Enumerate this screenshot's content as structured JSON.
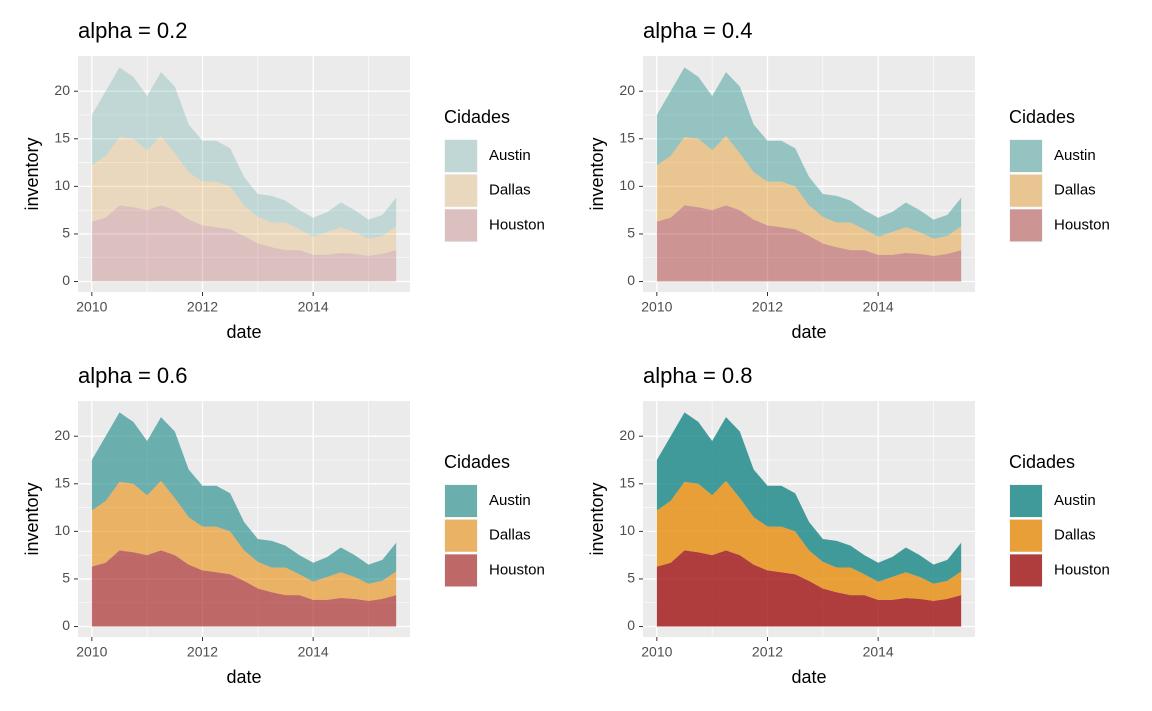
{
  "chart_data": [
    {
      "type": "area",
      "stacked": true,
      "title": "alpha = 0.2",
      "alpha": 0.2,
      "xlabel": "date",
      "ylabel": "inventory",
      "legend_title": "Cidades",
      "x": [
        2010,
        2010.25,
        2010.5,
        2010.75,
        2011,
        2011.25,
        2011.5,
        2011.75,
        2012,
        2012.25,
        2012.5,
        2012.75,
        2013,
        2013.25,
        2013.5,
        2013.75,
        2014,
        2014.25,
        2014.5,
        2014.75,
        2015,
        2015.25,
        2015.5
      ],
      "series": [
        {
          "name": "Austin",
          "color": "#148684",
          "values": [
            5.3,
            6.8,
            7.3,
            6.5,
            5.7,
            6.7,
            7.0,
            5.0,
            4.3,
            4.3,
            4.0,
            3.0,
            2.4,
            2.8,
            2.3,
            2.0,
            2.0,
            2.1,
            2.6,
            2.3,
            2.0,
            2.2,
            3.0
          ]
        },
        {
          "name": "Dallas",
          "color": "#E78C0B",
          "values": [
            5.9,
            6.5,
            7.2,
            7.2,
            6.3,
            7.3,
            6.0,
            5.0,
            4.6,
            4.8,
            4.5,
            3.2,
            2.8,
            2.6,
            2.9,
            2.2,
            1.9,
            2.4,
            2.7,
            2.3,
            1.8,
            1.9,
            2.5
          ]
        },
        {
          "name": "Houston",
          "color": "#A11111",
          "values": [
            6.3,
            6.7,
            8.0,
            7.8,
            7.5,
            8.0,
            7.5,
            6.5,
            5.9,
            5.7,
            5.5,
            4.8,
            4.0,
            3.6,
            3.3,
            3.3,
            2.8,
            2.8,
            3.0,
            2.9,
            2.7,
            2.9,
            3.3
          ]
        }
      ],
      "xlim": [
        2009.75,
        2015.75
      ],
      "xticks": [
        2010,
        2012,
        2014
      ],
      "ylim": [
        -1.1,
        23.7
      ],
      "yticks": [
        0,
        5,
        10,
        15,
        20
      ],
      "grid": true
    },
    {
      "type": "area",
      "stacked": true,
      "title": "alpha = 0.4",
      "alpha": 0.4,
      "xlabel": "date",
      "ylabel": "inventory",
      "legend_title": "Cidades",
      "x": [
        2010,
        2010.25,
        2010.5,
        2010.75,
        2011,
        2011.25,
        2011.5,
        2011.75,
        2012,
        2012.25,
        2012.5,
        2012.75,
        2013,
        2013.25,
        2013.5,
        2013.75,
        2014,
        2014.25,
        2014.5,
        2014.75,
        2015,
        2015.25,
        2015.5
      ],
      "series": [
        {
          "name": "Austin",
          "color": "#148684",
          "values": [
            5.3,
            6.8,
            7.3,
            6.5,
            5.7,
            6.7,
            7.0,
            5.0,
            4.3,
            4.3,
            4.0,
            3.0,
            2.4,
            2.8,
            2.3,
            2.0,
            2.0,
            2.1,
            2.6,
            2.3,
            2.0,
            2.2,
            3.0
          ]
        },
        {
          "name": "Dallas",
          "color": "#E78C0B",
          "values": [
            5.9,
            6.5,
            7.2,
            7.2,
            6.3,
            7.3,
            6.0,
            5.0,
            4.6,
            4.8,
            4.5,
            3.2,
            2.8,
            2.6,
            2.9,
            2.2,
            1.9,
            2.4,
            2.7,
            2.3,
            1.8,
            1.9,
            2.5
          ]
        },
        {
          "name": "Houston",
          "color": "#A11111",
          "values": [
            6.3,
            6.7,
            8.0,
            7.8,
            7.5,
            8.0,
            7.5,
            6.5,
            5.9,
            5.7,
            5.5,
            4.8,
            4.0,
            3.6,
            3.3,
            3.3,
            2.8,
            2.8,
            3.0,
            2.9,
            2.7,
            2.9,
            3.3
          ]
        }
      ],
      "xlim": [
        2009.75,
        2015.75
      ],
      "xticks": [
        2010,
        2012,
        2014
      ],
      "ylim": [
        -1.1,
        23.7
      ],
      "yticks": [
        0,
        5,
        10,
        15,
        20
      ],
      "grid": true
    },
    {
      "type": "area",
      "stacked": true,
      "title": "alpha = 0.6",
      "alpha": 0.6,
      "xlabel": "date",
      "ylabel": "inventory",
      "legend_title": "Cidades",
      "x": [
        2010,
        2010.25,
        2010.5,
        2010.75,
        2011,
        2011.25,
        2011.5,
        2011.75,
        2012,
        2012.25,
        2012.5,
        2012.75,
        2013,
        2013.25,
        2013.5,
        2013.75,
        2014,
        2014.25,
        2014.5,
        2014.75,
        2015,
        2015.25,
        2015.5
      ],
      "series": [
        {
          "name": "Austin",
          "color": "#148684",
          "values": [
            5.3,
            6.8,
            7.3,
            6.5,
            5.7,
            6.7,
            7.0,
            5.0,
            4.3,
            4.3,
            4.0,
            3.0,
            2.4,
            2.8,
            2.3,
            2.0,
            2.0,
            2.1,
            2.6,
            2.3,
            2.0,
            2.2,
            3.0
          ]
        },
        {
          "name": "Dallas",
          "color": "#E78C0B",
          "values": [
            5.9,
            6.5,
            7.2,
            7.2,
            6.3,
            7.3,
            6.0,
            5.0,
            4.6,
            4.8,
            4.5,
            3.2,
            2.8,
            2.6,
            2.9,
            2.2,
            1.9,
            2.4,
            2.7,
            2.3,
            1.8,
            1.9,
            2.5
          ]
        },
        {
          "name": "Houston",
          "color": "#A11111",
          "values": [
            6.3,
            6.7,
            8.0,
            7.8,
            7.5,
            8.0,
            7.5,
            6.5,
            5.9,
            5.7,
            5.5,
            4.8,
            4.0,
            3.6,
            3.3,
            3.3,
            2.8,
            2.8,
            3.0,
            2.9,
            2.7,
            2.9,
            3.3
          ]
        }
      ],
      "xlim": [
        2009.75,
        2015.75
      ],
      "xticks": [
        2010,
        2012,
        2014
      ],
      "ylim": [
        -1.1,
        23.7
      ],
      "yticks": [
        0,
        5,
        10,
        15,
        20
      ],
      "grid": true
    },
    {
      "type": "area",
      "stacked": true,
      "title": "alpha = 0.8",
      "alpha": 0.8,
      "xlabel": "date",
      "ylabel": "inventory",
      "legend_title": "Cidades",
      "x": [
        2010,
        2010.25,
        2010.5,
        2010.75,
        2011,
        2011.25,
        2011.5,
        2011.75,
        2012,
        2012.25,
        2012.5,
        2012.75,
        2013,
        2013.25,
        2013.5,
        2013.75,
        2014,
        2014.25,
        2014.5,
        2014.75,
        2015,
        2015.25,
        2015.5
      ],
      "series": [
        {
          "name": "Austin",
          "color": "#148684",
          "values": [
            5.3,
            6.8,
            7.3,
            6.5,
            5.7,
            6.7,
            7.0,
            5.0,
            4.3,
            4.3,
            4.0,
            3.0,
            2.4,
            2.8,
            2.3,
            2.0,
            2.0,
            2.1,
            2.6,
            2.3,
            2.0,
            2.2,
            3.0
          ]
        },
        {
          "name": "Dallas",
          "color": "#E78C0B",
          "values": [
            5.9,
            6.5,
            7.2,
            7.2,
            6.3,
            7.3,
            6.0,
            5.0,
            4.6,
            4.8,
            4.5,
            3.2,
            2.8,
            2.6,
            2.9,
            2.2,
            1.9,
            2.4,
            2.7,
            2.3,
            1.8,
            1.9,
            2.5
          ]
        },
        {
          "name": "Houston",
          "color": "#A11111",
          "values": [
            6.3,
            6.7,
            8.0,
            7.8,
            7.5,
            8.0,
            7.5,
            6.5,
            5.9,
            5.7,
            5.5,
            4.8,
            4.0,
            3.6,
            3.3,
            3.3,
            2.8,
            2.8,
            3.0,
            2.9,
            2.7,
            2.9,
            3.3
          ]
        }
      ],
      "xlim": [
        2009.75,
        2015.75
      ],
      "xticks": [
        2010,
        2012,
        2014
      ],
      "ylim": [
        -1.1,
        23.7
      ],
      "yticks": [
        0,
        5,
        10,
        15,
        20
      ],
      "grid": true
    }
  ]
}
